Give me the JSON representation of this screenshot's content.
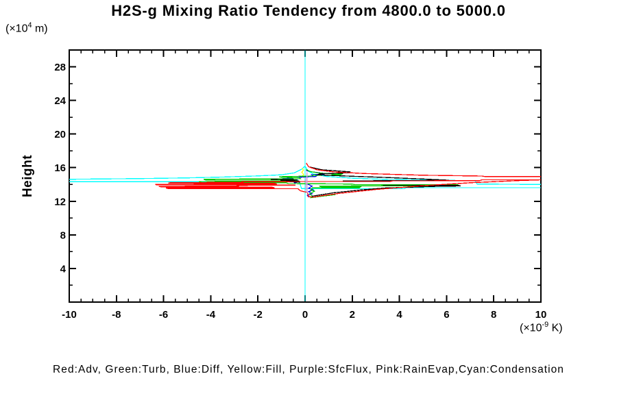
{
  "chart_data": {
    "type": "line",
    "title": "H2S-g Mixing Ratio Tendency from 4800.0 to 5000.0",
    "legend_text": "Red:Adv, Green:Turb, Blue:Diff, Yellow:Fill, Purple:SfcFlux, Pink:RainEvap,Cyan:Condensation",
    "grid": false,
    "x_axis": {
      "units_prefix": "(×10",
      "units_exp": "-9",
      "units_suffix": " K)",
      "range": [
        -10,
        10
      ],
      "ticks": [
        -10,
        -8,
        -6,
        -4,
        -2,
        0,
        2,
        4,
        6,
        8,
        10
      ],
      "minor_step": 0.5
    },
    "y_axis": {
      "label": "Height",
      "units_prefix": "(×10",
      "units_exp": "4",
      "units_suffix": " m)",
      "range": [
        0,
        30
      ],
      "ticks": [
        4,
        8,
        12,
        16,
        20,
        24,
        28
      ],
      "minor_step": 2
    },
    "series": [
      {
        "name": "Condensation",
        "color": "#00ffff",
        "paths": [
          [
            [
              0,
              0.1
            ],
            [
              0,
              29.95
            ]
          ],
          [
            [
              -10,
              14.62
            ],
            [
              -7,
              14.7
            ],
            [
              -5,
              14.78
            ],
            [
              -3.5,
              14.88
            ],
            [
              -2,
              15.02
            ],
            [
              -1,
              15.15
            ],
            [
              -0.45,
              15.38
            ],
            [
              -0.15,
              15.8
            ],
            [
              0,
              16.18
            ],
            [
              0.12,
              15.6
            ],
            [
              0.35,
              15.25
            ],
            [
              0.9,
              14.95
            ],
            [
              2,
              14.75
            ],
            [
              3.5,
              14.6
            ],
            [
              5.5,
              14.5
            ],
            [
              7.2,
              14.45
            ],
            [
              7.3,
              14.05
            ],
            [
              10,
              14.0
            ]
          ],
          [
            [
              -10,
              14.33
            ],
            [
              -0.25,
              14.33
            ],
            [
              -0.15,
              13.52
            ],
            [
              0.2,
              13.5
            ],
            [
              4.2,
              13.5
            ],
            [
              4.3,
              13.62
            ],
            [
              10,
              13.62
            ]
          ]
        ]
      },
      {
        "name": "Fill",
        "color": "#ffff00",
        "paths": [
          [
            [
              -0.12,
              15.95
            ],
            [
              -0.07,
              15.7
            ],
            [
              -0.14,
              15.45
            ],
            [
              -0.06,
              15.2
            ],
            [
              -0.12,
              14.95
            ],
            [
              -0.05,
              14.8
            ]
          ]
        ]
      },
      {
        "name": "Diff",
        "color": "#0000ee",
        "paths": [
          [
            [
              0.05,
              15.65
            ],
            [
              0.3,
              15.5
            ],
            [
              0.85,
              15.3
            ],
            [
              0.8,
              15.22
            ],
            [
              0.25,
              15.15
            ],
            [
              0.5,
              15.05
            ],
            [
              0.45,
              14.95
            ],
            [
              -0.1,
              14.88
            ],
            [
              -0.95,
              14.68
            ],
            [
              -0.85,
              14.58
            ],
            [
              -0.3,
              14.55
            ],
            [
              -0.9,
              14.45
            ],
            [
              -0.8,
              14.38
            ],
            [
              -0.2,
              14.35
            ],
            [
              -0.45,
              14.2
            ],
            [
              -0.4,
              14.1
            ],
            [
              0.1,
              14.05
            ],
            [
              0.3,
              13.8
            ],
            [
              0.15,
              13.55
            ],
            [
              0.35,
              13.35
            ],
            [
              0.15,
              13.15
            ],
            [
              0.3,
              12.9
            ],
            [
              0.1,
              12.7
            ],
            [
              0.15,
              12.5
            ]
          ]
        ]
      },
      {
        "name": "Turb",
        "color": "#00cc00",
        "paths": [
          [
            [
              0.05,
              15.8
            ],
            [
              0.2,
              15.55
            ],
            [
              0.6,
              15.35
            ],
            [
              1.55,
              15.22
            ],
            [
              1.5,
              15.15
            ],
            [
              0.35,
              15.1
            ],
            [
              0.3,
              15.0
            ],
            [
              -1.1,
              14.92
            ],
            [
              -1.0,
              14.85
            ],
            [
              -0.25,
              14.8
            ],
            [
              -0.2,
              14.68
            ],
            [
              -4.3,
              14.62
            ],
            [
              -4.2,
              14.52
            ],
            [
              -0.35,
              14.5
            ],
            [
              -0.3,
              14.4
            ],
            [
              -4.5,
              14.35
            ],
            [
              -4.4,
              14.22
            ],
            [
              -0.8,
              14.2
            ],
            [
              -0.7,
              14.1
            ],
            [
              2.0,
              14.05
            ],
            [
              2.1,
              13.98
            ],
            [
              6.5,
              13.95
            ],
            [
              6.4,
              13.85
            ],
            [
              0.6,
              13.82
            ],
            [
              0.7,
              13.72
            ],
            [
              2.35,
              13.7
            ],
            [
              2.3,
              13.6
            ],
            [
              0.3,
              13.58
            ],
            [
              0.25,
              13.35
            ],
            [
              0.4,
              13.2
            ],
            [
              0.2,
              12.9
            ],
            [
              0.3,
              12.6
            ],
            [
              0.25,
              12.42
            ],
            [
              0.5,
              12.52
            ],
            [
              1.3,
              12.8
            ]
          ]
        ]
      },
      {
        "name": "Black",
        "color": "#000000",
        "paths": [
          [
            [
              0.2,
              16.08
            ],
            [
              0.7,
              15.75
            ],
            [
              1.9,
              15.5
            ],
            [
              1.85,
              15.38
            ],
            [
              0.6,
              15.25
            ],
            [
              0.55,
              15.15
            ],
            [
              1.3,
              15.05
            ],
            [
              3.2,
              14.85
            ],
            [
              5.0,
              14.65
            ],
            [
              6.1,
              14.5
            ],
            [
              4.2,
              14.45
            ],
            [
              1.6,
              14.42
            ]
          ],
          [
            [
              -1.45,
              14.62
            ],
            [
              -0.35,
              14.55
            ],
            [
              -1.05,
              14.48
            ],
            [
              -0.25,
              14.42
            ],
            [
              -0.9,
              14.32
            ],
            [
              -0.2,
              14.28
            ]
          ],
          [
            [
              0.3,
              12.6
            ],
            [
              1.2,
              13.0
            ],
            [
              2.4,
              13.35
            ],
            [
              3.4,
              13.58
            ],
            [
              5.6,
              13.78
            ],
            [
              6.6,
              13.82
            ],
            [
              6.5,
              13.88
            ],
            [
              3.3,
              13.9
            ]
          ]
        ]
      },
      {
        "name": "Adv",
        "color": "#ff0000",
        "paths": [
          [
            [
              0.05,
              16.55
            ],
            [
              0.15,
              16.1
            ],
            [
              0.5,
              15.75
            ],
            [
              1.2,
              15.5
            ],
            [
              2.5,
              15.3
            ],
            [
              5,
              15.1
            ],
            [
              7.5,
              15.0
            ],
            [
              7.6,
              14.95
            ],
            [
              10,
              14.95
            ]
          ],
          [
            [
              10,
              14.55
            ],
            [
              7.5,
              14.55
            ],
            [
              7.4,
              14.45
            ],
            [
              3.7,
              14.42
            ],
            [
              3.6,
              14.35
            ],
            [
              0.4,
              14.35
            ],
            [
              -2.7,
              14.32
            ],
            [
              -2.6,
              14.25
            ],
            [
              -5.7,
              14.22
            ],
            [
              -5.8,
              14.15
            ],
            [
              -1.3,
              14.12
            ],
            [
              -1.2,
              14.05
            ],
            [
              -6.35,
              14.02
            ],
            [
              -6.3,
              13.95
            ],
            [
              -0.4,
              13.92
            ],
            [
              -2.9,
              13.88
            ],
            [
              -2.8,
              13.8
            ],
            [
              -6.2,
              13.78
            ],
            [
              -6.1,
              13.7
            ],
            [
              -1.4,
              13.68
            ],
            [
              -1.3,
              13.6
            ],
            [
              -5.9,
              13.58
            ],
            [
              -5.8,
              13.5
            ],
            [
              -0.3,
              13.48
            ],
            [
              -0.2,
              13.25
            ],
            [
              0.1,
              13.05
            ],
            [
              0.15,
              12.55
            ],
            [
              0.35,
              12.5
            ],
            [
              0.7,
              12.65
            ],
            [
              1.5,
              12.95
            ],
            [
              3,
              13.4
            ],
            [
              5,
              13.85
            ],
            [
              7,
              14.2
            ],
            [
              9,
              14.45
            ],
            [
              10,
              14.55
            ]
          ]
        ]
      },
      {
        "name": "RainEvap",
        "color": "#ff9ec4",
        "paths": [
          [
            [
              0.03,
              14.75
            ],
            [
              0.03,
              13.3
            ]
          ]
        ]
      },
      {
        "name": "SfcFlux",
        "color": "#cc99ee",
        "paths": [
          [
            [
              0.08,
              15.45
            ],
            [
              0.08,
              12.95
            ]
          ]
        ]
      }
    ]
  }
}
